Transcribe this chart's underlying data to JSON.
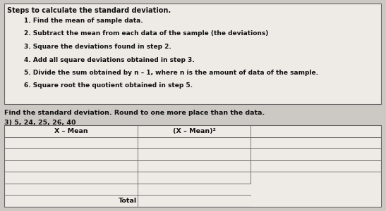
{
  "bg_color": "#ccc8c4",
  "box_bg": "#eeeae6",
  "box_border": "#666666",
  "title_box_title": "Steps to calculate the standard deviation.",
  "steps": [
    "1. Find the mean of sample data.",
    "2. Subtract the mean from each data of the sample (the deviations)",
    "3. Square the deviations found in step 2.",
    "4. Add all square deviations obtained in step 3.",
    "5. Divide the sum obtained by n – 1, where n is the amount of data of the sample.",
    "6. Square root the quotient obtained in step 5."
  ],
  "problem_label": "Find the standard deviation. Round to one more place than the data.",
  "problem_number": "3) 5, 24, 25, 26, 40",
  "col1_header": "X – Mean",
  "col2_header": "(X – Mean)²",
  "total_label": "Total",
  "text_color": "#111111",
  "title_fontsize": 7.0,
  "step_fontsize": 6.5,
  "body_fontsize": 6.8,
  "table_fontsize": 6.8
}
